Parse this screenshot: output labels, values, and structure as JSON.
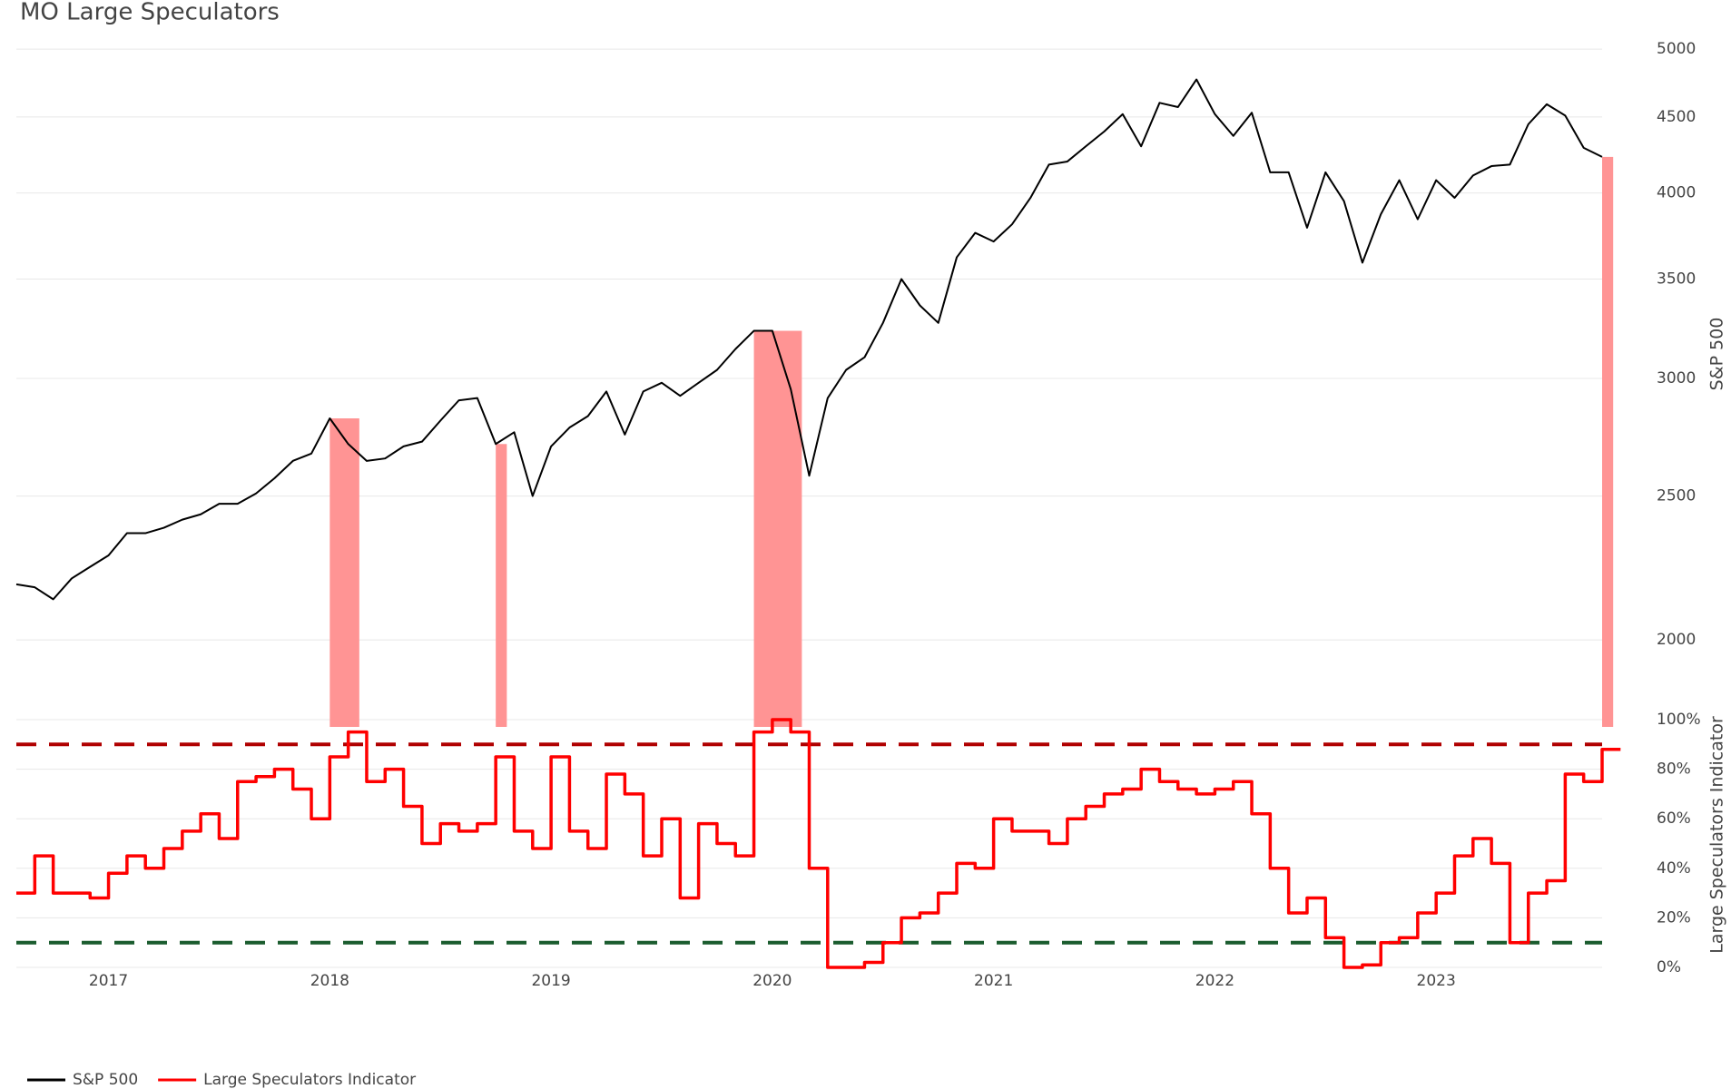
{
  "chart_data": {
    "type": "line",
    "title": "MO Large Speculators",
    "x": [
      "2016-08",
      "2016-09",
      "2016-10",
      "2016-11",
      "2016-12",
      "2017-01",
      "2017-02",
      "2017-03",
      "2017-04",
      "2017-05",
      "2017-06",
      "2017-07",
      "2017-08",
      "2017-09",
      "2017-10",
      "2017-11",
      "2017-12",
      "2018-01",
      "2018-02",
      "2018-03",
      "2018-04",
      "2018-05",
      "2018-06",
      "2018-07",
      "2018-08",
      "2018-09",
      "2018-10",
      "2018-11",
      "2018-12",
      "2019-01",
      "2019-02",
      "2019-03",
      "2019-04",
      "2019-05",
      "2019-06",
      "2019-07",
      "2019-08",
      "2019-09",
      "2019-10",
      "2019-11",
      "2019-12",
      "2020-01",
      "2020-02",
      "2020-03",
      "2020-04",
      "2020-05",
      "2020-06",
      "2020-07",
      "2020-08",
      "2020-09",
      "2020-10",
      "2020-11",
      "2020-12",
      "2021-01",
      "2021-02",
      "2021-03",
      "2021-04",
      "2021-05",
      "2021-06",
      "2021-07",
      "2021-08",
      "2021-09",
      "2021-10",
      "2021-11",
      "2021-12",
      "2022-01",
      "2022-02",
      "2022-03",
      "2022-04",
      "2022-05",
      "2022-06",
      "2022-07",
      "2022-08",
      "2022-09",
      "2022-10",
      "2022-11",
      "2022-12",
      "2023-01",
      "2023-02",
      "2023-03",
      "2023-04",
      "2023-05",
      "2023-06",
      "2023-07",
      "2023-08",
      "2023-09",
      "2023-10"
    ],
    "series": [
      {
        "name": "S&P 500",
        "color": "#000000",
        "axis": "y",
        "values": [
          2180,
          2170,
          2130,
          2200,
          2240,
          2280,
          2360,
          2360,
          2380,
          2410,
          2430,
          2470,
          2470,
          2510,
          2570,
          2640,
          2670,
          2820,
          2710,
          2640,
          2650,
          2700,
          2720,
          2810,
          2900,
          2910,
          2710,
          2760,
          2500,
          2700,
          2780,
          2830,
          2940,
          2750,
          2940,
          2980,
          2920,
          2980,
          3040,
          3140,
          3230,
          3230,
          2950,
          2580,
          2910,
          3040,
          3100,
          3270,
          3500,
          3360,
          3270,
          3620,
          3760,
          3710,
          3810,
          3970,
          4180,
          4200,
          4300,
          4400,
          4520,
          4300,
          4600,
          4570,
          4770,
          4520,
          4370,
          4530,
          4130,
          4130,
          3790,
          4130,
          3950,
          3590,
          3870,
          4080,
          3840,
          4080,
          3970,
          4110,
          4170,
          4180,
          4450,
          4590,
          4510,
          4290,
          4230
        ]
      },
      {
        "name": "Large Speculators Indicator",
        "color": "#ff0000",
        "axis": "y2",
        "values": [
          30,
          45,
          30,
          30,
          28,
          38,
          45,
          40,
          48,
          55,
          62,
          52,
          75,
          77,
          80,
          72,
          60,
          85,
          95,
          75,
          80,
          65,
          50,
          58,
          55,
          58,
          85,
          55,
          48,
          85,
          55,
          48,
          78,
          70,
          45,
          60,
          28,
          58,
          50,
          45,
          95,
          100,
          95,
          40,
          0,
          0,
          2,
          10,
          20,
          22,
          30,
          42,
          40,
          60,
          55,
          55,
          50,
          60,
          65,
          70,
          72,
          80,
          75,
          72,
          70,
          72,
          75,
          62,
          40,
          22,
          28,
          12,
          0,
          1,
          10,
          12,
          22,
          30,
          45,
          52,
          42,
          10,
          30,
          35,
          78,
          75,
          88
        ]
      }
    ],
    "xlim": [
      "2016-08",
      "2023-10"
    ],
    "xticks": [
      {
        "value": "2017-01",
        "label": "2017"
      },
      {
        "value": "2018-01",
        "label": "2018"
      },
      {
        "value": "2019-01",
        "label": "2019"
      },
      {
        "value": "2020-01",
        "label": "2020"
      },
      {
        "value": "2021-01",
        "label": "2021"
      },
      {
        "value": "2022-01",
        "label": "2022"
      },
      {
        "value": "2023-01",
        "label": "2023"
      }
    ],
    "ylim": [
      1800,
      5100
    ],
    "yticks": [
      2000,
      2500,
      3000,
      3500,
      4000,
      4500,
      5000
    ],
    "log_y": true,
    "y_label": "S&P 500",
    "y2lim": [
      0,
      100
    ],
    "y2ticks": [
      {
        "value": 0,
        "label": "0%"
      },
      {
        "value": 20,
        "label": "20%"
      },
      {
        "value": 40,
        "label": "40%"
      },
      {
        "value": 60,
        "label": "60%"
      },
      {
        "value": 80,
        "label": "80%"
      },
      {
        "value": 100,
        "label": "100%"
      }
    ],
    "y2_label": "Large Speculators Indicator",
    "thresholds": [
      {
        "value": 90,
        "color": "#b00000"
      },
      {
        "value": 10,
        "color": "#1a5c2e"
      }
    ],
    "highlights": [
      {
        "x0": "2018-01",
        "x1": "2018-02"
      },
      {
        "x0": "2018-10",
        "x1": "2018-10"
      },
      {
        "x0": "2019-12",
        "x1": "2020-02"
      },
      {
        "x0": "2023-10",
        "x1": "2023-10"
      }
    ],
    "highlight_color": "#ff9494",
    "grid": true
  }
}
